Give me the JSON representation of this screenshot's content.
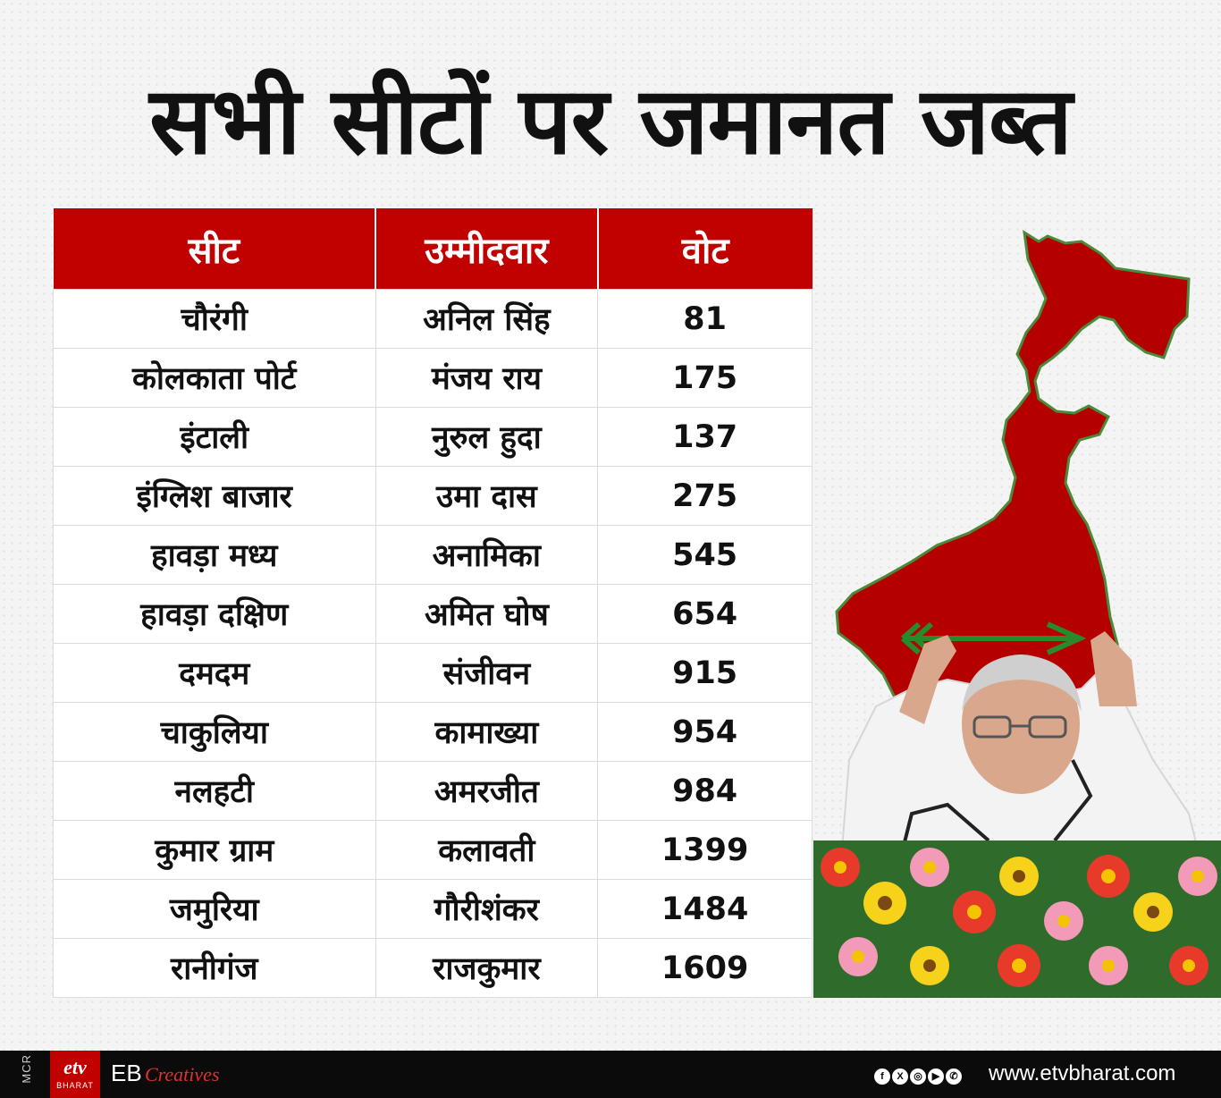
{
  "title": "सभी सीटों पर जमानत जब्त",
  "table": {
    "headers": [
      "सीट",
      "उम्मीदवार",
      "वोट"
    ],
    "rows": [
      [
        "चौरंगी",
        "अनिल सिंह",
        "81"
      ],
      [
        "कोलकाता पोर्ट",
        "मंजय राय",
        "175"
      ],
      [
        "इंटाली",
        "नुरुल हुदा",
        "137"
      ],
      [
        "इंग्लिश बाजार",
        "उमा दास",
        "275"
      ],
      [
        "हावड़ा मध्य",
        "अनामिका",
        "545"
      ],
      [
        "हावड़ा दक्षिण",
        "अमित घोष",
        "654"
      ],
      [
        "दमदम",
        "संजीवन",
        "915"
      ],
      [
        "चाकुलिया",
        "कामाख्या",
        "954"
      ],
      [
        "नलहटी",
        "अमरजीत",
        "984"
      ],
      [
        "कुमार ग्राम",
        "कलावती",
        "1399"
      ],
      [
        "जमुरिया",
        "गौरीशंकर",
        "1484"
      ],
      [
        "रानीगंज",
        "राजकुमार",
        "1609"
      ]
    ]
  },
  "colors": {
    "header_red": "#c10000",
    "map_red": "#b50000",
    "arrow_green": "#2a8a2a"
  },
  "footer": {
    "side_label": "MCR",
    "logo_main": "etv",
    "logo_sub": "BHARAT",
    "eb": "EB",
    "creatives": "Creatives",
    "social_icons": [
      "facebook-icon",
      "x-icon",
      "instagram-icon",
      "youtube-icon",
      "whatsapp-icon"
    ],
    "website": "www.etvbharat.com"
  }
}
